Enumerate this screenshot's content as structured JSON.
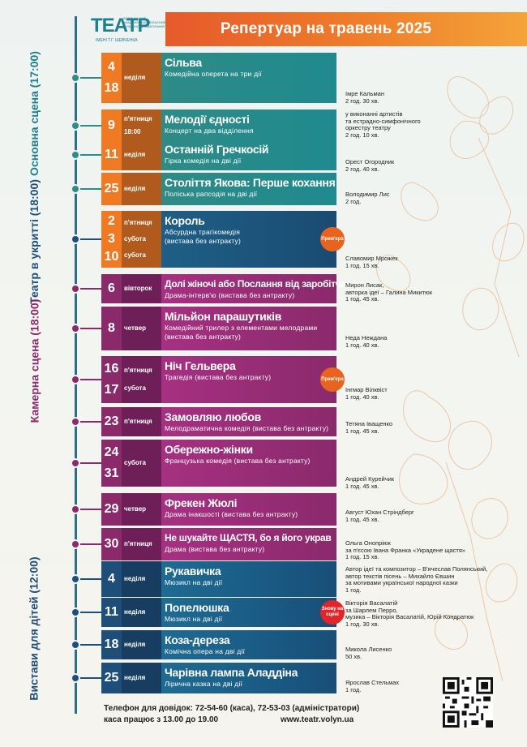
{
  "logo": {
    "mark": "ТЕАТР",
    "small": "ВОЛИНСЬКИЙ АКАДЕМІЧНИЙ ОБЛАСНИЙ МУЗИЧНО-ДРАМАТИЧНИЙ",
    "sub": "ІМЕНІ Т.Г. ШЕВЧЕНКА"
  },
  "header": {
    "title": "Репертуар на травень 2025"
  },
  "sections": [
    {
      "label": "Основна сцена (17:00)",
      "color": "#1e7f8f"
    },
    {
      "label": "Театр в укритті (18:00)",
      "color": "#1e4f7a"
    },
    {
      "label": "Камерна сцена (18:00)",
      "color": "#8a2a6b"
    },
    {
      "label": "Вистави для дітей (12:00)",
      "color": "#1e4f7a"
    }
  ],
  "events": [
    {
      "dates": [
        "4",
        "18"
      ],
      "day": [
        "неділя"
      ],
      "title": "Сільва",
      "subtitle": "Комедійна оперета на три дії",
      "author": [
        "Імре Кальман",
        "2 год. 30 хв."
      ]
    },
    {
      "dates": [
        "9"
      ],
      "day": [
        "п'ятниця",
        "18:00"
      ],
      "title": "Мелодії єдності",
      "subtitle": "Концерт на два відділення",
      "author": [
        "у виконанні артистів",
        "та естрадно-симфонічного",
        "оркестру театру",
        "2 год. 10 хв."
      ]
    },
    {
      "dates": [
        "11"
      ],
      "day": [
        "неділя"
      ],
      "title": "Останній Гречкосій",
      "subtitle": "Гірка комедія на дві дії",
      "author": [
        "Орест Огородник",
        "2 год. 40 хв."
      ]
    },
    {
      "dates": [
        "25"
      ],
      "day": [
        "неділя"
      ],
      "title": "Століття Якова: Перше кохання",
      "subtitle": "Поліська рапсодія на дві дії",
      "author": [
        "Володимир Лис",
        "2 год."
      ]
    },
    {
      "dates": [
        "2",
        "3",
        "10"
      ],
      "day": [
        "п'ятниця",
        "субота",
        "субота"
      ],
      "title": "Король",
      "subtitle": "Абсурдна трагікомедія",
      "subtitle2": "(вистава без антракту)",
      "badge": "Прем'єра",
      "author": [
        "Славомир Мрожек",
        "1 год. 15 хв."
      ]
    },
    {
      "dates": [
        "6"
      ],
      "day": [
        "вівторок"
      ],
      "title": "Долі жіночі або Послання від заробітчанок",
      "subtitle": "Драма-інтерв'ю (вистава без антракту)",
      "author": [
        "Мирон Лисак,",
        "авторка ідеї – Галина Микитюк",
        "1 год. 45 хв."
      ]
    },
    {
      "dates": [
        "8"
      ],
      "day": [
        "четвер"
      ],
      "title": "Мільйон парашутиків",
      "subtitle": "Комедійний трилер з елементами мелодрами",
      "subtitle2": "(вистава без антракту)",
      "author": [
        "Неда Неждана",
        "1 год. 40 хв."
      ]
    },
    {
      "dates": [
        "16",
        "17"
      ],
      "day": [
        "п'ятниця",
        "субота"
      ],
      "title": "Ніч Гельвера",
      "subtitle": "Трагедія (вистава без антракту)",
      "badge": "Прем'єра",
      "author": [
        "Інгмар Вілквіст",
        "1 год. 40 хв."
      ]
    },
    {
      "dates": [
        "23"
      ],
      "day": [
        "п'ятниця"
      ],
      "title": "Замовляю любов",
      "subtitle": "Мелодраматична комедія (вистава без антракту)",
      "author": [
        "Тетяна Іващенко",
        "1 год. 45 хв."
      ]
    },
    {
      "dates": [
        "24",
        "31"
      ],
      "day": [
        "субота"
      ],
      "title": "Обережно-жінки",
      "subtitle": "Французька комедія (вистава без антракту)",
      "author": [
        "Андрей Курейчик",
        "1 год. 45 хв."
      ]
    },
    {
      "dates": [
        "29"
      ],
      "day": [
        "четвер"
      ],
      "title": "Фрекен Жюлі",
      "subtitle": "Драма інакшості (вистава без антракту)",
      "author": [
        "Август Юхан Стріндберг",
        "1 год. 45 хв."
      ]
    },
    {
      "dates": [
        "30"
      ],
      "day": [
        "п'ятниця"
      ],
      "title": "Не шукайте ЩАСТЯ, бо я його украв",
      "subtitle": "Драма (вистава без антракту)",
      "author": [
        "Ольга Онопріюк",
        "за п'єсою Івана Франка «Украдене щастя»",
        "1 год. 15 хв."
      ]
    },
    {
      "dates": [
        "4"
      ],
      "day": [
        "неділя"
      ],
      "title": "Рукавичка",
      "subtitle": "Мюзикл на дві дії",
      "author": [
        "Автор ідеї та композитор – В'ячеслав Полянський,",
        "автор текстів пісень – Михайло Євшин",
        "за мотивами української народної казки",
        "1 год."
      ]
    },
    {
      "dates": [
        "11"
      ],
      "day": [
        "неділя"
      ],
      "title": "Попелюшка",
      "subtitle": "Мюзикл на дві дії",
      "badge": "Знову на сцені",
      "author": [
        "Вікторія Васалатій",
        "за Шарлем Перро,",
        "музика – Вікторія Васалатій, Юрій Кондратюк",
        "1 год. 30 хв."
      ]
    },
    {
      "dates": [
        "18"
      ],
      "day": [
        "неділя"
      ],
      "title": "Коза-дереза",
      "subtitle": "Комічна опера на дві дії",
      "author": [
        "Микола Лисенко",
        "50 хв."
      ]
    },
    {
      "dates": [
        "25"
      ],
      "day": [
        "неділя"
      ],
      "title": "Чарівна лампа Аладдіна",
      "subtitle": "Лірична казка на дві дії",
      "author": [
        "Ярослав Стельмах",
        "1 год."
      ]
    }
  ],
  "footer": {
    "phone": "Телефон для довідок: 72-54-60 (каса), 72-53-03 (адміністратори)",
    "hours": "каса працює з 13.00 до 19.00",
    "web": "www.teatr.volyn.ua"
  },
  "icons": {
    "qr": "qr-code-icon",
    "flowers": "magnolia-flowers-decoration"
  }
}
